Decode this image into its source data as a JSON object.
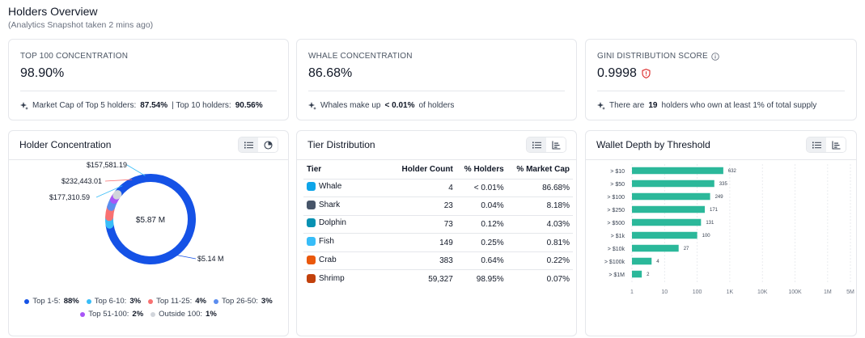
{
  "header": {
    "title": "Holders Overview",
    "subtitle": "(Analytics Snapshot taken 2 mins ago)"
  },
  "stats": [
    {
      "label": "TOP 100 CONCENTRATION",
      "value": "98.90%",
      "note_parts": [
        "Market Cap of Top 5 holders: ",
        "87.54%",
        " | Top 10 holders: ",
        "90.56%"
      ]
    },
    {
      "label": "WHALE CONCENTRATION",
      "value": "86.68%",
      "note_parts": [
        "Whales make up ",
        "< 0.01%",
        " of holders"
      ]
    },
    {
      "label": "GINI DISTRIBUTION SCORE",
      "value": "0.9998",
      "note_parts": [
        "There are ",
        "19",
        " holders who own at least 1% of total supply"
      ]
    }
  ],
  "holder_concentration": {
    "title": "Holder Concentration",
    "center_label": "$5.87 M",
    "callouts": [
      "$157,581.19",
      "$232,443.01",
      "$177,310.59",
      "$5.14 M"
    ],
    "legend": [
      {
        "label": "Top 1-5:",
        "value": "88%",
        "color": "#1552e6"
      },
      {
        "label": "Top 6-10:",
        "value": "3%",
        "color": "#38bdf8"
      },
      {
        "label": "Top 11-25:",
        "value": "4%",
        "color": "#f87171"
      },
      {
        "label": "Top 26-50:",
        "value": "3%",
        "color": "#5b8def"
      },
      {
        "label": "Top 51-100:",
        "value": "2%",
        "color": "#a855f7"
      },
      {
        "label": "Outside 100:",
        "value": "1%",
        "color": "#d1d5db"
      }
    ]
  },
  "tier_distribution": {
    "title": "Tier Distribution",
    "columns": [
      "Tier",
      "Holder Count",
      "% Holders",
      "% Market Cap"
    ],
    "rows": [
      {
        "tier": "Whale",
        "icon": "whale-icon",
        "icon_color": "#0ea5e9",
        "count": "4",
        "pct_holders": "< 0.01%",
        "pct_mcap": "86.68%"
      },
      {
        "tier": "Shark",
        "icon": "shark-icon",
        "icon_color": "#475569",
        "count": "23",
        "pct_holders": "0.04%",
        "pct_mcap": "8.18%"
      },
      {
        "tier": "Dolphin",
        "icon": "dolphin-icon",
        "icon_color": "#0891b2",
        "count": "73",
        "pct_holders": "0.12%",
        "pct_mcap": "4.03%"
      },
      {
        "tier": "Fish",
        "icon": "fish-icon",
        "icon_color": "#38bdf8",
        "count": "149",
        "pct_holders": "0.25%",
        "pct_mcap": "0.81%"
      },
      {
        "tier": "Crab",
        "icon": "crab-icon",
        "icon_color": "#ea580c",
        "count": "383",
        "pct_holders": "0.64%",
        "pct_mcap": "0.22%"
      },
      {
        "tier": "Shrimp",
        "icon": "shrimp-icon",
        "icon_color": "#c2410c",
        "count": "59,327",
        "pct_holders": "98.95%",
        "pct_mcap": "0.07%"
      }
    ]
  },
  "wallet_depth": {
    "title": "Wallet Depth by Threshold",
    "bar_color": "#2bb89a"
  },
  "chart_data": [
    {
      "type": "pie",
      "title": "Holder Concentration",
      "categories": [
        "Top 1-5",
        "Top 6-10",
        "Top 11-25",
        "Top 26-50",
        "Top 51-100",
        "Outside 100"
      ],
      "values": [
        88,
        3,
        4,
        3,
        2,
        1
      ],
      "center_value": "$5.87 M"
    },
    {
      "type": "bar",
      "orientation": "horizontal",
      "title": "Wallet Depth by Threshold",
      "categories": [
        "> $10",
        "> $50",
        "> $100",
        "> $250",
        "> $500",
        "> $1k",
        "> $10k",
        "> $100k",
        "> $1M"
      ],
      "values": [
        632,
        335,
        249,
        171,
        131,
        100,
        27,
        4,
        2
      ],
      "x_scale": "log",
      "x_ticks": [
        "1",
        "10",
        "100",
        "1K",
        "10K",
        "100K",
        "1M",
        "5M"
      ],
      "x_tick_values": [
        1,
        10,
        100,
        1000,
        10000,
        100000,
        1000000,
        5000000
      ],
      "grid": true
    }
  ]
}
